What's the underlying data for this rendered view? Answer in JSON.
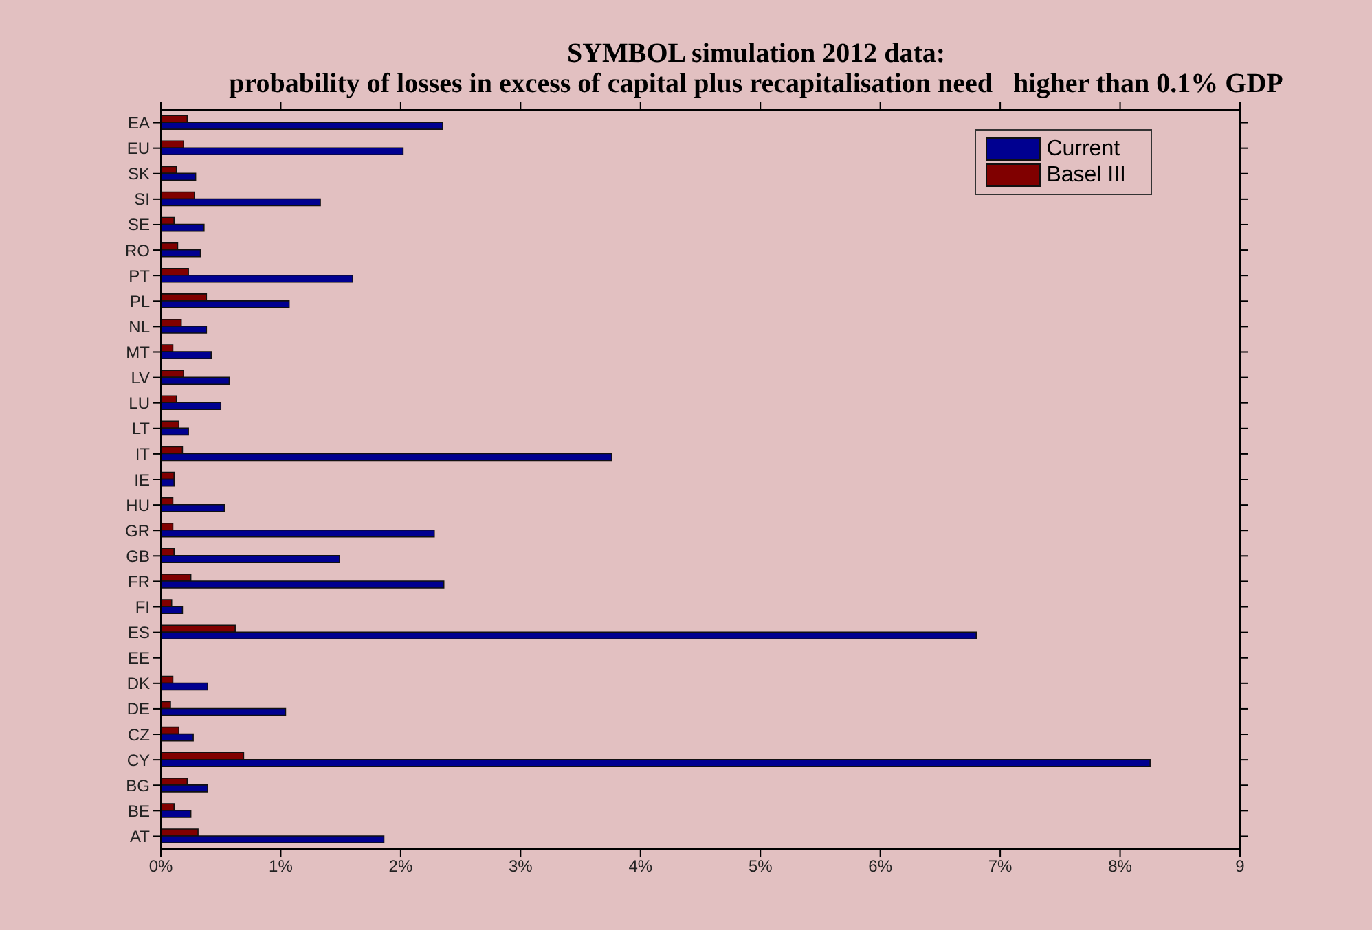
{
  "chart_data": {
    "type": "bar",
    "orientation": "horizontal",
    "title": "SYMBOL simulation 2012 data:",
    "subtitle": "probability of losses in excess of capital plus recapitalisation need   higher than 0.1% GDP",
    "categories": [
      "EA",
      "EU",
      "SK",
      "SI",
      "SE",
      "RO",
      "PT",
      "PL",
      "NL",
      "MT",
      "LV",
      "LU",
      "LT",
      "IT",
      "IE",
      "HU",
      "GR",
      "GB",
      "FR",
      "FI",
      "ES",
      "EE",
      "DK",
      "DE",
      "CZ",
      "CY",
      "BG",
      "BE",
      "AT"
    ],
    "series": [
      {
        "name": "Current",
        "color": "#000090",
        "values": [
          2.35,
          2.02,
          0.29,
          1.33,
          0.36,
          0.33,
          1.6,
          1.07,
          0.38,
          0.42,
          0.57,
          0.5,
          0.23,
          3.76,
          0.11,
          0.53,
          2.28,
          1.49,
          2.36,
          0.18,
          6.8,
          0,
          0.39,
          1.04,
          0.27,
          8.25,
          0.39,
          0.25,
          1.86
        ]
      },
      {
        "name": "Basel III",
        "color": "#800000",
        "values": [
          0.22,
          0.19,
          0.13,
          0.28,
          0.11,
          0.14,
          0.23,
          0.38,
          0.17,
          0.1,
          0.19,
          0.13,
          0.15,
          0.18,
          0.11,
          0.1,
          0.1,
          0.11,
          0.25,
          0.09,
          0.62,
          0,
          0.1,
          0.08,
          0.15,
          0.69,
          0.22,
          0.11,
          0.31
        ]
      }
    ],
    "xlim": [
      0,
      9
    ],
    "xticks": [
      {
        "value": 0,
        "label": "0%"
      },
      {
        "value": 1,
        "label": "1%"
      },
      {
        "value": 2,
        "label": "2%"
      },
      {
        "value": 3,
        "label": "3%"
      },
      {
        "value": 4,
        "label": "4%"
      },
      {
        "value": 5,
        "label": "5%"
      },
      {
        "value": 6,
        "label": "6%"
      },
      {
        "value": 7,
        "label": "7%"
      },
      {
        "value": 8,
        "label": "8%"
      },
      9
    ],
    "grid": false,
    "legend": "top right"
  }
}
